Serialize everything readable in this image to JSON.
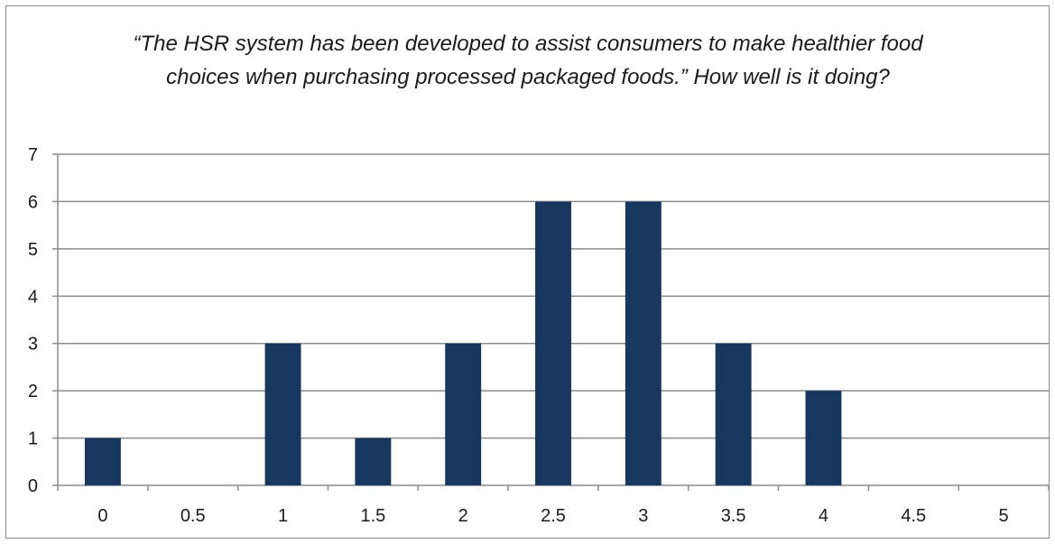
{
  "chart_data": {
    "type": "bar",
    "title": "“The HSR system has been developed to assist consumers to make healthier food choices when purchasing processed packaged foods.” How well is it doing?",
    "xlabel": "",
    "ylabel": "",
    "categories": [
      "0",
      "0.5",
      "1",
      "1.5",
      "2",
      "2.5",
      "3",
      "3.5",
      "4",
      "4.5",
      "5"
    ],
    "values": [
      1,
      0,
      3,
      1,
      3,
      6,
      6,
      3,
      2,
      0,
      0
    ],
    "ylim": [
      0,
      7
    ],
    "yticks": [
      "0",
      "1",
      "2",
      "3",
      "4",
      "5",
      "6",
      "7"
    ],
    "grid": true,
    "legend": "none",
    "bar_color": "#17375e",
    "grid_color": "#8c8c8c"
  }
}
